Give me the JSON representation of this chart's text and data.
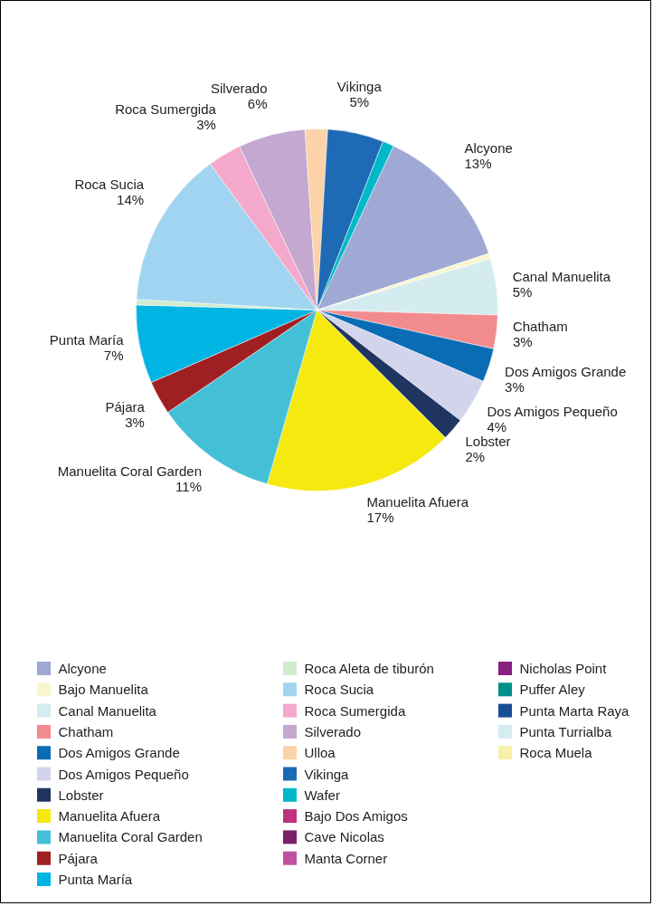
{
  "chart_data": {
    "type": "pie",
    "categories": [
      "Alcyone",
      "Bajo Manuelita",
      "Canal Manuelita",
      "Chatham",
      "Dos Amigos Grande",
      "Dos Amigos Pequeño",
      "Lobster",
      "Manuelita Afuera",
      "Manuelita Coral Garden",
      "Pájara",
      "Punta María",
      "Roca Aleta de tiburón",
      "Roca Sucia",
      "Roca Sumergida",
      "Silverado",
      "Ulloa",
      "Vikinga",
      "Wafer",
      "Bajo Dos Amigos",
      "Cave Nicolas",
      "Manta Corner",
      "Nicholas Point",
      "Puffer Aley",
      "Punta Marta Raya",
      "Punta Turrialba",
      "Roca Muela"
    ],
    "values": [
      13,
      0.5,
      5,
      3,
      3,
      4,
      2,
      17,
      11,
      3,
      7,
      0.5,
      14,
      3,
      6,
      2,
      5,
      1,
      0,
      0,
      0,
      0,
      0,
      0,
      0,
      0
    ],
    "colors": [
      "#a0a8d4",
      "#f8f6d0",
      "#d4ecf0",
      "#f28b8e",
      "#0a6cb4",
      "#d2d4ec",
      "#1f3560",
      "#f5e90f",
      "#43c0d6",
      "#a01f23",
      "#00b4e4",
      "#d0eccd",
      "#a0d4f0",
      "#f4a8cc",
      "#c4a8d0",
      "#fcd2a8",
      "#1e6ab4",
      "#00b8c8",
      "#c0307c",
      "#7a2068",
      "#c050a0",
      "#8a2080",
      "#00908a",
      "#1a4e96",
      "#d4ecf0",
      "#f8f0a8"
    ],
    "value_labels": [
      "13%",
      null,
      "5%",
      "3%",
      "3%",
      "4%",
      "2%",
      "17%",
      "11%",
      "3%",
      "7%",
      null,
      "14%",
      "3%",
      "6%",
      null,
      "5%",
      null,
      null,
      null,
      null,
      null,
      null,
      null,
      null,
      null
    ],
    "legend": "bottom"
  }
}
